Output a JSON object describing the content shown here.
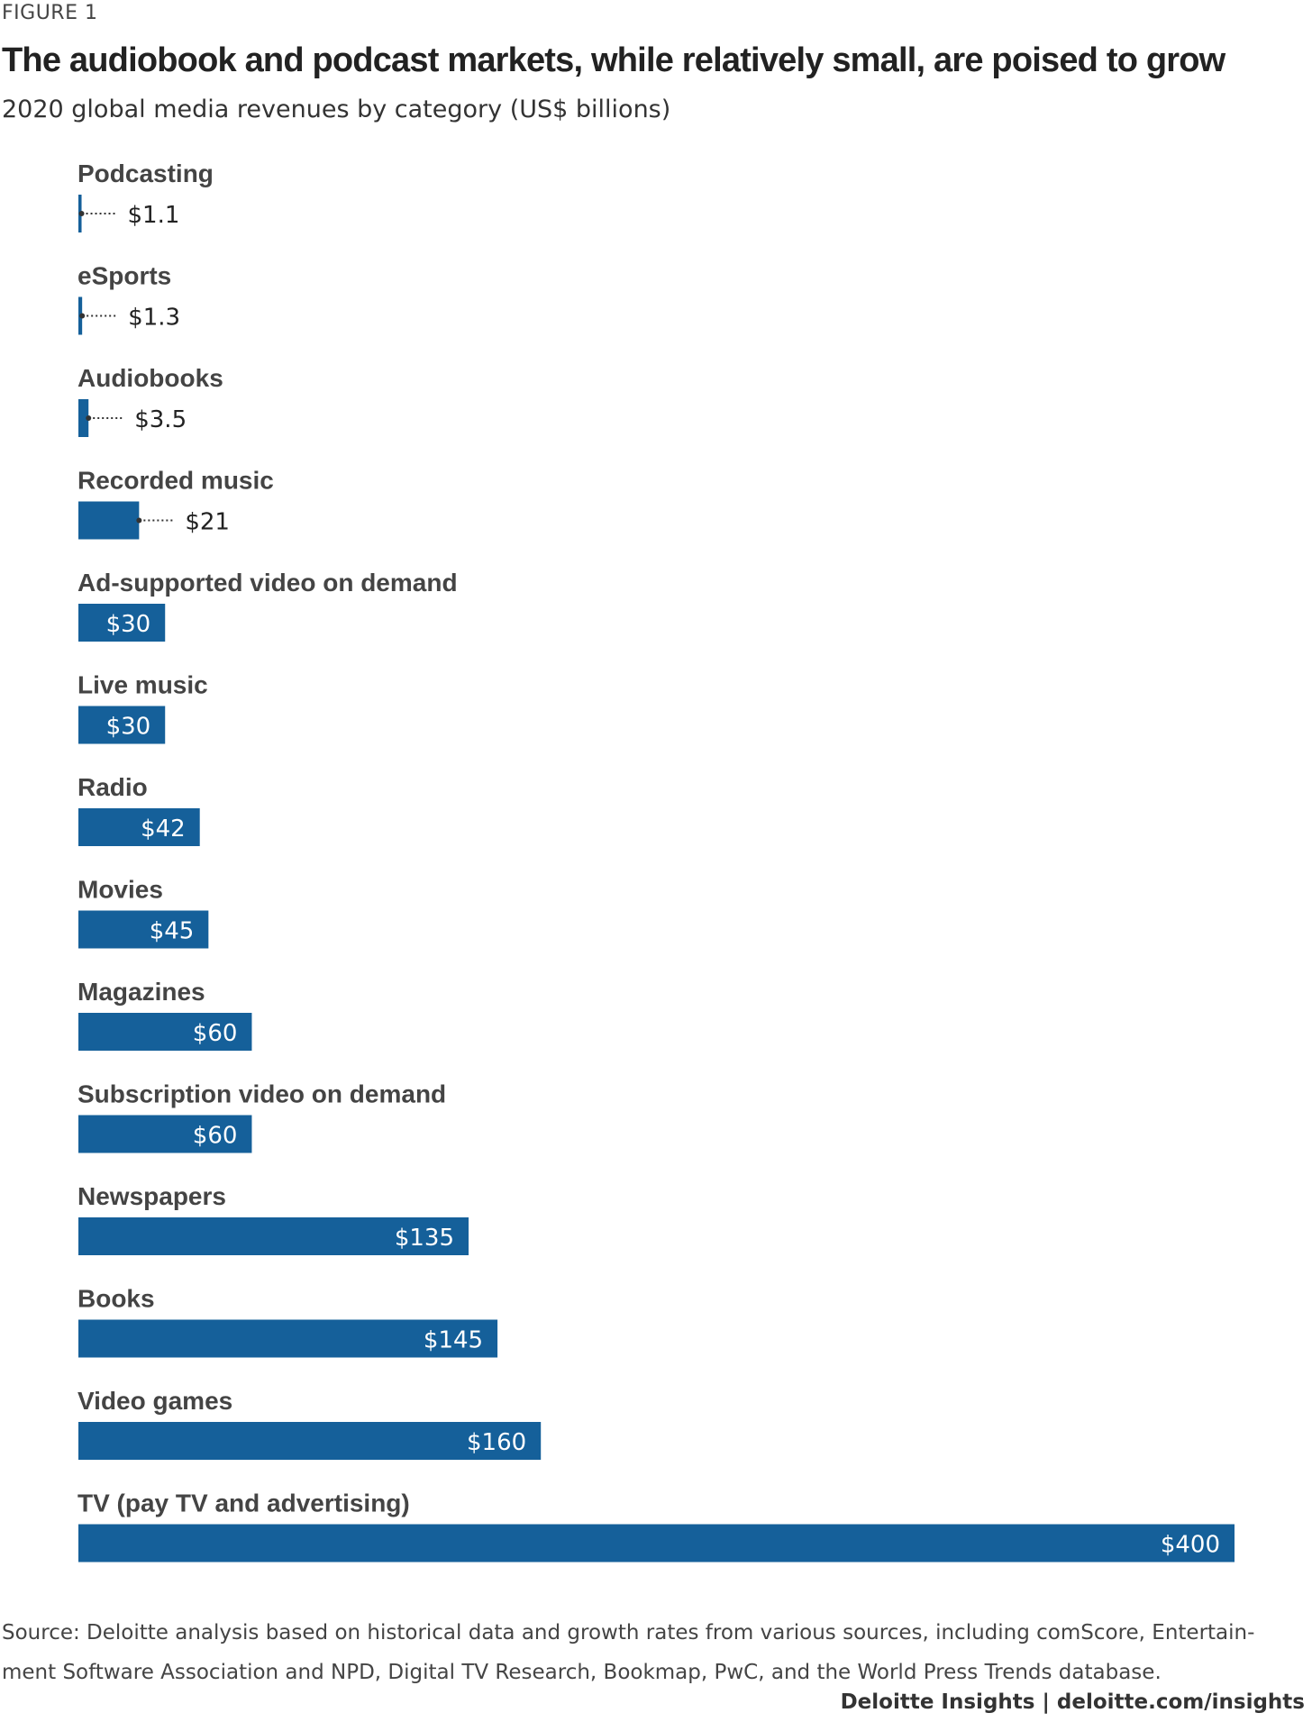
{
  "header": {
    "figure_label": "FIGURE 1",
    "title": "The audiobook and podcast markets, while relatively small, are poised to grow",
    "subtitle": "2020 global media revenues by category (US$ billions)"
  },
  "chart_data": {
    "type": "bar",
    "orientation": "horizontal",
    "title": "The audiobook and podcast markets, while relatively small, are poised to grow",
    "subtitle": "2020 global media revenues by category (US$ billions)",
    "categories": [
      "Podcasting",
      "eSports",
      "Audiobooks",
      "Recorded music",
      "Ad-supported video on demand",
      "Live music",
      "Radio",
      "Movies",
      "Magazines",
      "Subscription video on demand",
      "Newspapers",
      "Books",
      "Video games",
      "TV (pay TV and advertising)"
    ],
    "values": [
      1.1,
      1.3,
      3.5,
      21,
      30,
      30,
      42,
      45,
      60,
      60,
      135,
      145,
      160,
      400
    ],
    "value_labels": [
      "$1.1",
      "$1.3",
      "$3.5",
      "$21",
      "$30",
      "$30",
      "$42",
      "$45",
      "$60",
      "$60",
      "$135",
      "$145",
      "$160",
      "$400"
    ],
    "xlim": [
      0,
      400
    ],
    "grid": false,
    "legend": "none",
    "bar_color": "#15609a",
    "label_color": "#444444"
  },
  "source": "Source: Deloitte analysis based on historical data and growth rates from various sources, including comScore, Entertain-ment Software Association and NPD, Digital TV Research, Bookmap, PwC, and the World Press Trends database.",
  "source_lines": [
    "Source: Deloitte analysis based on historical data and growth rates from various sources, including comScore, Entertain-",
    "ment Software Association and NPD, Digital TV Research, Bookmap, PwC, and the World Press Trends database."
  ],
  "footer": {
    "credit": "Deloitte Insights | deloitte.com/insights"
  }
}
